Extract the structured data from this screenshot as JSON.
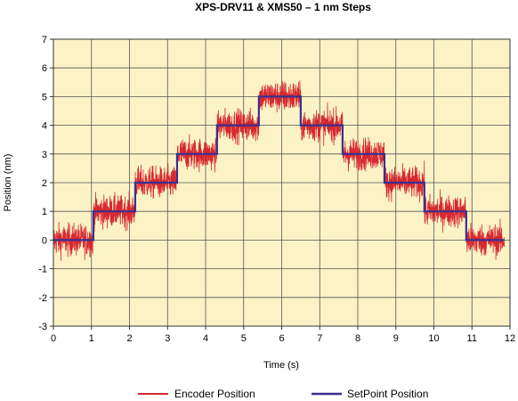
{
  "chart_data": {
    "type": "line",
    "title": "XPS-DRV11 & XMS50 – 1 nm Steps",
    "xlabel": "Time (s)",
    "ylabel": "Position (nm)",
    "xlim": [
      0,
      12
    ],
    "ylim": [
      -3,
      7
    ],
    "xticks": [
      "0",
      "1",
      "2",
      "3",
      "4",
      "5",
      "6",
      "7",
      "8",
      "9",
      "10",
      "11",
      "12"
    ],
    "yticks": [
      "-3",
      "-2",
      "-1",
      "0",
      "1",
      "2",
      "3",
      "4",
      "5",
      "6",
      "7"
    ],
    "grid": true,
    "legend_position": "bottom",
    "colors": {
      "plot_background": "#fbf3c6",
      "grid": "#555555",
      "encoder": "#d7282f",
      "setpoint": "#3a2f8f"
    },
    "series": [
      {
        "name": "Encoder Position",
        "color": "#d7282f",
        "noise_amplitude_nm": 0.85,
        "step_levels": [
          {
            "t_start": 0.0,
            "t_end": 1.05,
            "level": 0
          },
          {
            "t_start": 1.05,
            "t_end": 2.15,
            "level": 1
          },
          {
            "t_start": 2.15,
            "t_end": 3.25,
            "level": 2
          },
          {
            "t_start": 3.25,
            "t_end": 4.3,
            "level": 3
          },
          {
            "t_start": 4.3,
            "t_end": 5.4,
            "level": 4
          },
          {
            "t_start": 5.4,
            "t_end": 6.5,
            "level": 5
          },
          {
            "t_start": 6.5,
            "t_end": 7.6,
            "level": 4
          },
          {
            "t_start": 7.6,
            "t_end": 8.7,
            "level": 3
          },
          {
            "t_start": 8.7,
            "t_end": 9.75,
            "level": 2
          },
          {
            "t_start": 9.75,
            "t_end": 10.85,
            "level": 1
          },
          {
            "t_start": 10.85,
            "t_end": 11.85,
            "level": 0
          }
        ]
      },
      {
        "name": "SetPoint Position",
        "color": "#3a2f8f",
        "x": [
          0,
          1.05,
          1.05,
          2.15,
          2.15,
          3.25,
          3.25,
          4.3,
          4.3,
          5.4,
          5.4,
          6.5,
          6.5,
          7.6,
          7.6,
          8.7,
          8.7,
          9.75,
          9.75,
          10.85,
          10.85,
          11.85
        ],
        "y": [
          0,
          0,
          1,
          1,
          2,
          2,
          3,
          3,
          4,
          4,
          5,
          5,
          4,
          4,
          3,
          3,
          2,
          2,
          1,
          1,
          0,
          0
        ]
      }
    ]
  }
}
